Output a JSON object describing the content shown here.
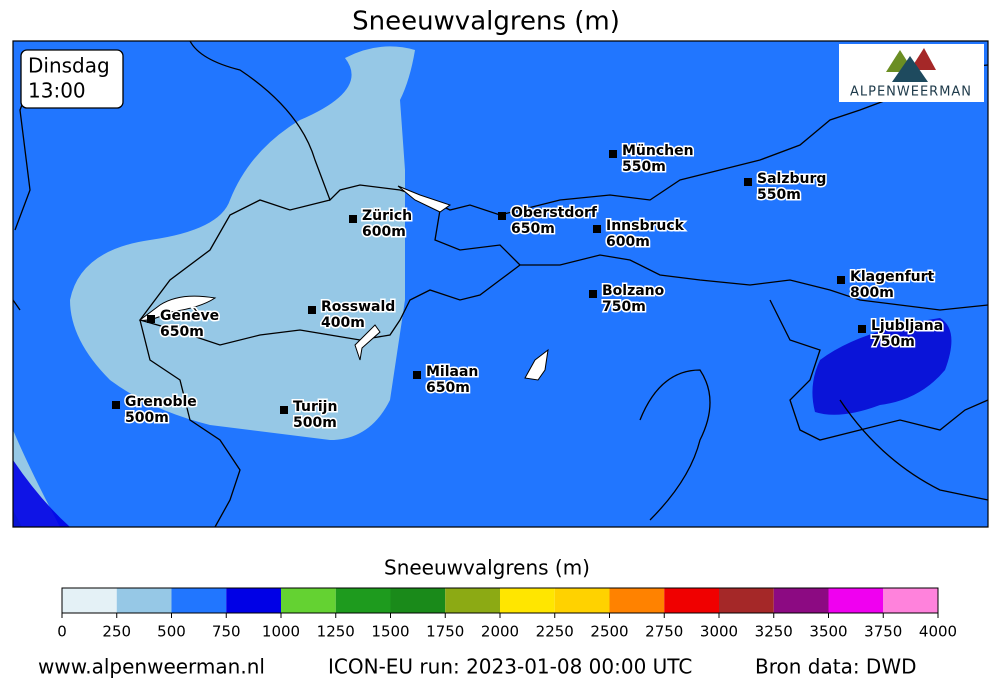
{
  "header": {
    "title": "Sneeuwvalgrens (m)"
  },
  "timebox": {
    "day": "Dinsdag",
    "time": "13:00"
  },
  "logo": {
    "text": "ALPENWEERMAN"
  },
  "cities": [
    {
      "name": "München",
      "snowline": "550m"
    },
    {
      "name": "Salzburg",
      "snowline": "550m"
    },
    {
      "name": "Zürich",
      "snowline": "600m"
    },
    {
      "name": "Oberstdorf",
      "snowline": "650m"
    },
    {
      "name": "Innsbruck",
      "snowline": "600m"
    },
    {
      "name": "Bolzano",
      "snowline": "750m"
    },
    {
      "name": "Klagenfurt",
      "snowline": "800m"
    },
    {
      "name": "Ljubljana",
      "snowline": "750m"
    },
    {
      "name": "Genève",
      "snowline": "650m"
    },
    {
      "name": "Rosswald",
      "snowline": "400m"
    },
    {
      "name": "Milaan",
      "snowline": "650m"
    },
    {
      "name": "Grenoble",
      "snowline": "500m"
    },
    {
      "name": "Turijn",
      "snowline": "500m"
    }
  ],
  "colorbar": {
    "label": "Sneeuwvalgrens (m)",
    "ticks": [
      0,
      250,
      500,
      750,
      1000,
      1250,
      1500,
      1750,
      2000,
      2250,
      2500,
      2750,
      3000,
      3250,
      3500,
      3750,
      4000
    ],
    "colors": [
      "#e4f1f6",
      "#96c8e6",
      "#2176ff",
      "#0000e6",
      "#64d232",
      "#1e9b1e",
      "#1a8a1a",
      "#8caa14",
      "#ffe600",
      "#ffd200",
      "#ff8200",
      "#f00000",
      "#a52828",
      "#8c0a82",
      "#f000f0",
      "#ff82dc"
    ]
  },
  "footer": {
    "site": "www.alpenweerman.nl",
    "run": "ICON-EU run: 2023-01-08 00:00 UTC",
    "source": "Bron data: DWD"
  }
}
